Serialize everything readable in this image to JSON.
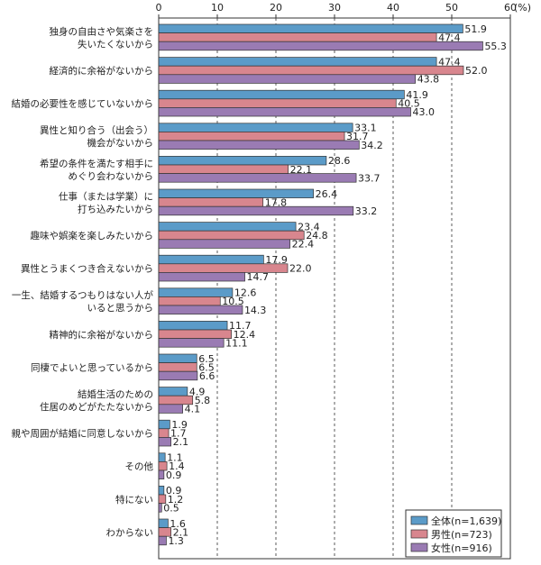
{
  "chart_data": {
    "type": "bar",
    "orientation": "horizontal",
    "x_unit": "(%)",
    "xlim": [
      0,
      60
    ],
    "xticks": [
      0,
      10,
      20,
      30,
      40,
      50,
      60
    ],
    "grid": true,
    "legend_position": "bottom-right",
    "categories": [
      [
        "独身の自由さや気楽さを",
        "失いたくないから"
      ],
      [
        "経済的に余裕がないから"
      ],
      [
        "結婚の必要性を感じていないから"
      ],
      [
        "異性と知り合う（出会う）",
        "機会がないから"
      ],
      [
        "希望の条件を満たす相手に",
        "めぐり会わないから"
      ],
      [
        "仕事（または学業）に",
        "打ち込みたいから"
      ],
      [
        "趣味や娯楽を楽しみたいから"
      ],
      [
        "異性とうまくつき合えないから"
      ],
      [
        "一生、結婚するつもりはない人が",
        "いると思うから"
      ],
      [
        "精神的に余裕がないから"
      ],
      [
        "同棲でよいと思っているから"
      ],
      [
        "結婚生活のための",
        "住居のめどがたたないから"
      ],
      [
        "親や周囲が結婚に同意しないから"
      ],
      [
        "その他"
      ],
      [
        "特にない"
      ],
      [
        "わからない"
      ]
    ],
    "series": [
      {
        "name": "全体(n=1,639)",
        "color": "#5b9bc8",
        "values": [
          51.9,
          47.4,
          41.9,
          33.1,
          28.6,
          26.4,
          23.4,
          17.9,
          12.6,
          11.7,
          6.5,
          4.9,
          1.9,
          1.1,
          0.9,
          1.6
        ],
        "labels": [
          "51.9",
          "47.4",
          "41.9",
          "33.1",
          "28.6",
          "26.4",
          "23.4",
          "17.9",
          "12.6",
          "11.7",
          "6.5",
          "4.9",
          "1.9",
          "1.1",
          "0.9",
          "1.6"
        ]
      },
      {
        "name": "男性(n=723)",
        "color": "#d8868e",
        "values": [
          47.4,
          52.0,
          40.5,
          31.7,
          22.1,
          17.8,
          24.8,
          22.0,
          10.5,
          12.4,
          6.5,
          5.8,
          1.7,
          1.4,
          1.2,
          2.1
        ],
        "labels": [
          "47.4",
          "52.0",
          "40.5",
          "31.7",
          "22.1",
          "17.8",
          "24.8",
          "22.0",
          "10.5",
          "12.4",
          "6.5",
          "5.8",
          "1.7",
          "1.4",
          "1.2",
          "2.1"
        ]
      },
      {
        "name": "女性(n=916)",
        "color": "#9a7bb3",
        "values": [
          55.3,
          43.8,
          43.0,
          34.2,
          33.7,
          33.2,
          22.4,
          14.7,
          14.3,
          11.1,
          6.6,
          4.1,
          2.1,
          0.9,
          0.5,
          1.3
        ],
        "labels": [
          "55.3",
          "43.8",
          "43.0",
          "34.2",
          "33.7",
          "33.2",
          "22.4",
          "14.7",
          "14.3",
          "11.1",
          "6.6",
          "4.1",
          "2.1",
          "0.9",
          "0.5",
          "1.3"
        ]
      }
    ]
  }
}
